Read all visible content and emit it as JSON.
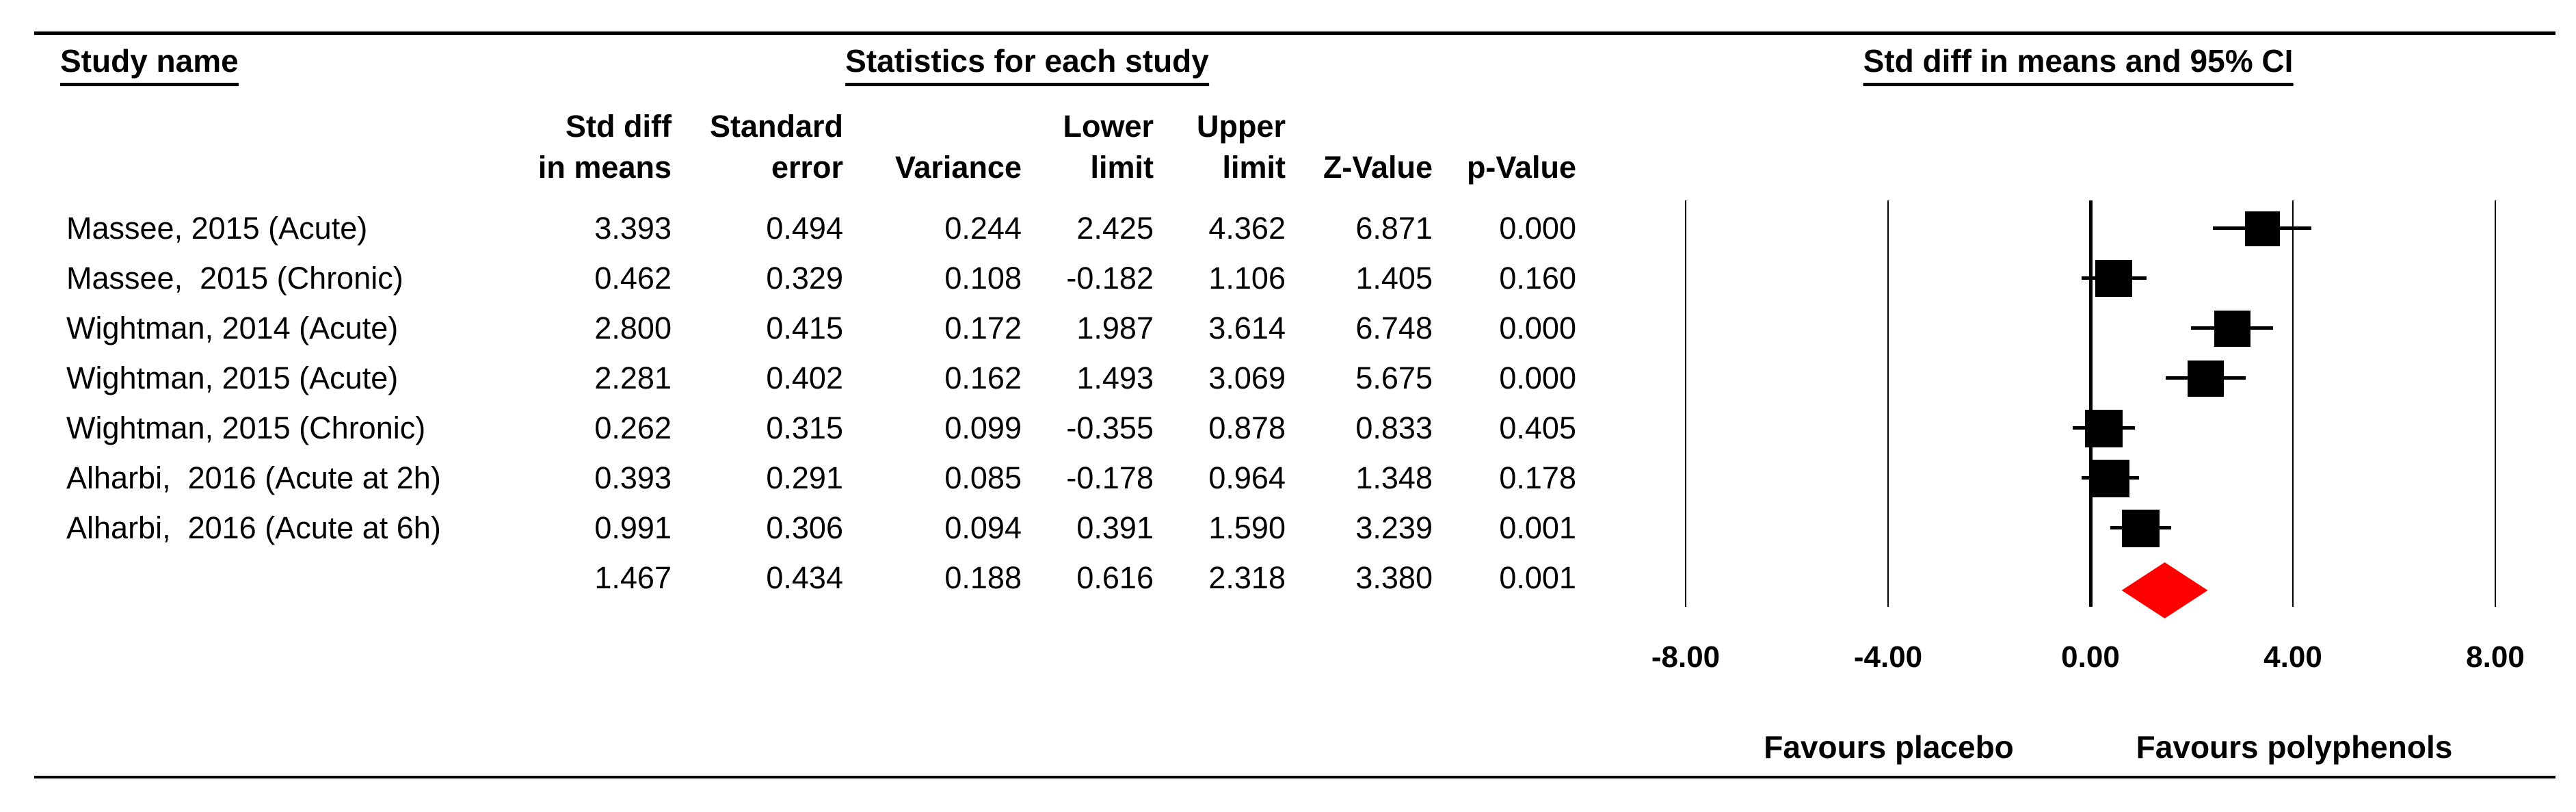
{
  "headers": {
    "study": "Study name",
    "statistics": "Statistics for each study",
    "plot": "Std diff in means and 95% CI"
  },
  "columns": [
    {
      "line1": "Std diff",
      "line2": "in means"
    },
    {
      "line1": "Standard",
      "line2": "error"
    },
    {
      "line1": "",
      "line2": "Variance"
    },
    {
      "line1": "Lower",
      "line2": "limit"
    },
    {
      "line1": "Upper",
      "line2": "limit"
    },
    {
      "line1": "",
      "line2": "Z-Value"
    },
    {
      "line1": "",
      "line2": "p-Value"
    }
  ],
  "rows": [
    {
      "study": "Massee, 2015 (Acute)",
      "std_diff": "3.393",
      "std_err": "0.494",
      "variance": "0.244",
      "lower": "2.425",
      "upper": "4.362",
      "z": "6.871",
      "p": "0.000"
    },
    {
      "study": "Massee,  2015 (Chronic)",
      "std_diff": "0.462",
      "std_err": "0.329",
      "variance": "0.108",
      "lower": "-0.182",
      "upper": "1.106",
      "z": "1.405",
      "p": "0.160"
    },
    {
      "study": "Wightman, 2014 (Acute)",
      "std_diff": "2.800",
      "std_err": "0.415",
      "variance": "0.172",
      "lower": "1.987",
      "upper": "3.614",
      "z": "6.748",
      "p": "0.000"
    },
    {
      "study": "Wightman, 2015 (Acute)",
      "std_diff": "2.281",
      "std_err": "0.402",
      "variance": "0.162",
      "lower": "1.493",
      "upper": "3.069",
      "z": "5.675",
      "p": "0.000"
    },
    {
      "study": "Wightman, 2015 (Chronic)",
      "std_diff": "0.262",
      "std_err": "0.315",
      "variance": "0.099",
      "lower": "-0.355",
      "upper": "0.878",
      "z": "0.833",
      "p": "0.405"
    },
    {
      "study": "Alharbi,  2016 (Acute at 2h)",
      "std_diff": "0.393",
      "std_err": "0.291",
      "variance": "0.085",
      "lower": "-0.178",
      "upper": "0.964",
      "z": "1.348",
      "p": "0.178"
    },
    {
      "study": "Alharbi,  2016 (Acute at 6h)",
      "std_diff": "0.991",
      "std_err": "0.306",
      "variance": "0.094",
      "lower": "0.391",
      "upper": "1.590",
      "z": "3.239",
      "p": "0.001"
    },
    {
      "study": "",
      "std_diff": "1.467",
      "std_err": "0.434",
      "variance": "0.188",
      "lower": "0.616",
      "upper": "2.318",
      "z": "3.380",
      "p": "0.001"
    }
  ],
  "axis": {
    "tick_labels": [
      "-8.00",
      "-4.00",
      "0.00",
      "4.00",
      "8.00"
    ]
  },
  "footer": {
    "left": "Favours placebo",
    "right": "Favours polyphenols"
  },
  "colors": {
    "marker": "#000000",
    "diamond": "#ff0000",
    "line": "#000000"
  },
  "chart_data": {
    "type": "scatter",
    "subtype": "forest-plot",
    "title": "Std diff in means and 95% CI",
    "studies": [
      "Massee, 2015 (Acute)",
      "Massee,  2015 (Chronic)",
      "Wightman, 2014 (Acute)",
      "Wightman, 2015 (Acute)",
      "Wightman, 2015 (Chronic)",
      "Alharbi,  2016 (Acute at 2h)",
      "Alharbi,  2016 (Acute at 6h)"
    ],
    "values": [
      3.393,
      0.462,
      2.8,
      2.281,
      0.262,
      0.393,
      0.991
    ],
    "se": [
      0.494,
      0.329,
      0.415,
      0.402,
      0.315,
      0.291,
      0.306
    ],
    "variance": [
      0.244,
      0.108,
      0.172,
      0.162,
      0.099,
      0.085,
      0.094
    ],
    "ci_lower": [
      2.425,
      -0.182,
      1.987,
      1.493,
      -0.355,
      -0.178,
      0.391
    ],
    "ci_upper": [
      4.362,
      1.106,
      3.614,
      3.069,
      0.878,
      0.964,
      1.59
    ],
    "z_values": [
      6.871,
      1.405,
      6.748,
      5.675,
      0.833,
      1.348,
      3.239
    ],
    "p_values": [
      0.0,
      0.16,
      0.0,
      0.0,
      0.405,
      0.178,
      0.001
    ],
    "summary": {
      "value": 1.467,
      "se": 0.434,
      "variance": 0.188,
      "ci_lower": 0.616,
      "ci_upper": 2.318,
      "z": 3.38,
      "p": 0.001
    },
    "tick_values": [
      -8,
      -4,
      0,
      4,
      8
    ],
    "tick_labels": [
      "-8.00",
      "-4.00",
      "0.00",
      "4.00",
      "8.00"
    ],
    "xlim": [
      -8,
      8
    ],
    "grid": "vertical-gridlines-on",
    "legend": "none",
    "favours_left": "Favours placebo",
    "favours_right": "Favours polyphenols"
  }
}
